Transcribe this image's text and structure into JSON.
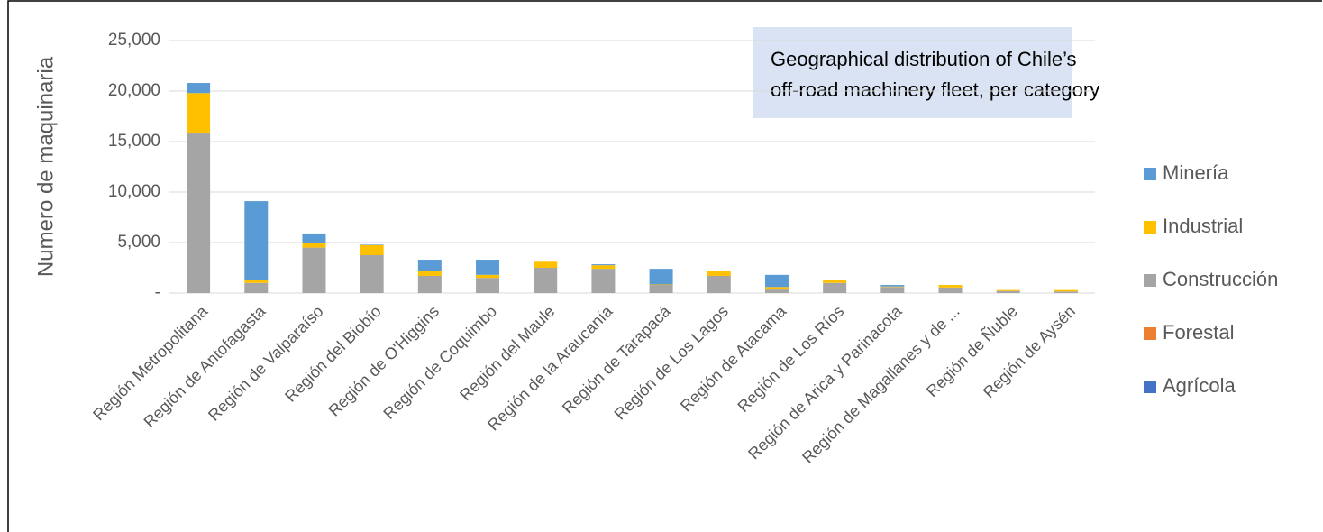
{
  "chart_data": {
    "type": "stacked_bar",
    "title": [
      "Geographical distribution of Chile’s",
      "off-road machinery fleet, per category"
    ],
    "y_label": "Numero  de maquinaria",
    "categories": [
      "Región Metropolitana",
      "Región de Antofagasta",
      "Región de Valparaíso",
      "Región del Biobío",
      "Región de O'Higgins",
      "Región de Coquimbo",
      "Región del Maule",
      "Región de la Araucanía",
      "Región de Tarapacá",
      "Región de Los Lagos",
      "Región de Atacama",
      "Región de Los Ríos",
      "Región de Arica y Parinacota",
      "Región de Magallanes y de ...",
      "Región de Ñuble",
      "Región de Aysén"
    ],
    "series": [
      {
        "name": "Agrícola",
        "color": "#4472c4",
        "values": [
          0,
          0,
          0,
          0,
          0,
          0,
          0,
          0,
          0,
          0,
          0,
          0,
          0,
          0,
          0,
          0
        ]
      },
      {
        "name": "Forestal",
        "color": "#ed7d31",
        "values": [
          0,
          0,
          0,
          0,
          0,
          0,
          0,
          0,
          0,
          0,
          0,
          0,
          0,
          0,
          0,
          0
        ]
      },
      {
        "name": "Construcción",
        "color": "#a5a5a5",
        "values": [
          15800,
          1000,
          4500,
          3750,
          1700,
          1500,
          2500,
          2400,
          800,
          1700,
          350,
          1000,
          600,
          550,
          200,
          150
        ]
      },
      {
        "name": "Industrial",
        "color": "#ffc000",
        "values": [
          4000,
          250,
          500,
          1000,
          500,
          300,
          600,
          350,
          50,
          500,
          250,
          250,
          50,
          250,
          100,
          150
        ]
      },
      {
        "name": "Minería",
        "color": "#5b9bd5",
        "values": [
          1000,
          7850,
          900,
          50,
          1100,
          1500,
          0,
          100,
          1550,
          0,
          1200,
          0,
          150,
          0,
          0,
          0
        ]
      }
    ],
    "ylim": [
      0,
      25000
    ],
    "yticks": [
      {
        "value": 0,
        "label": "-"
      },
      {
        "value": 5000,
        "label": "5,000"
      },
      {
        "value": 10000,
        "label": "10,000"
      },
      {
        "value": 15000,
        "label": "15,000"
      },
      {
        "value": 20000,
        "label": "20,000"
      },
      {
        "value": 25000,
        "label": "25,000"
      }
    ],
    "grid": true,
    "legend": "right"
  }
}
